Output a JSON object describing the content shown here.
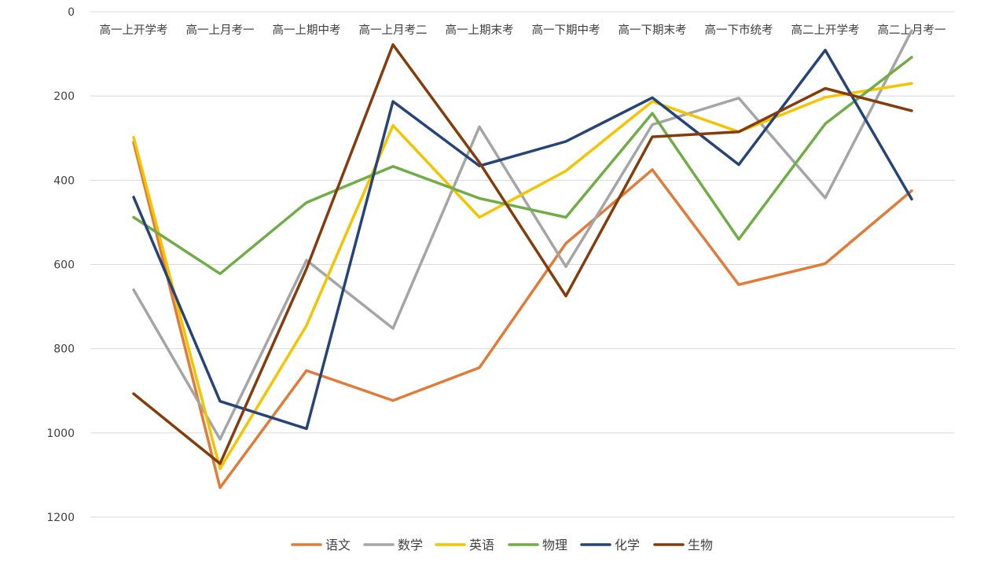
{
  "chart_data": {
    "type": "line",
    "title": "",
    "xlabel": "",
    "ylabel": "",
    "y_axis": {
      "min": 0,
      "max": 1200,
      "step": 200,
      "reversed": true,
      "ticks": [
        0,
        200,
        400,
        600,
        800,
        1000,
        1200
      ]
    },
    "x_axis_position": "top",
    "grid": true,
    "legend_position": "bottom",
    "categories": [
      "高一上开学考",
      "高一上月考一",
      "高一上期中考",
      "高一上月考二",
      "高一上期末考",
      "高一下期中考",
      "高一下期末考",
      "高一下市统考",
      "高二上开学考",
      "高二上月考一"
    ],
    "series": [
      {
        "name": "语文",
        "color": "#e07b39",
        "values": [
          310,
          1130,
          852,
          923,
          845,
          550,
          375,
          648,
          598,
          425
        ]
      },
      {
        "name": "数学",
        "color": "#a5a5a5",
        "values": [
          660,
          1015,
          590,
          752,
          273,
          605,
          268,
          205,
          442,
          45
        ]
      },
      {
        "name": "英语",
        "color": "#f4c400",
        "values": [
          298,
          1085,
          745,
          270,
          488,
          378,
          213,
          285,
          203,
          170
        ]
      },
      {
        "name": "物理",
        "color": "#70ad47",
        "values": [
          488,
          622,
          453,
          367,
          443,
          488,
          241,
          540,
          266,
          108
        ]
      },
      {
        "name": "化学",
        "color": "#264478",
        "values": [
          440,
          925,
          990,
          213,
          366,
          308,
          204,
          363,
          91,
          445
        ]
      },
      {
        "name": "生物",
        "color": "#843c0c",
        "values": [
          907,
          1073,
          610,
          78,
          358,
          675,
          297,
          285,
          182,
          235
        ]
      }
    ]
  }
}
